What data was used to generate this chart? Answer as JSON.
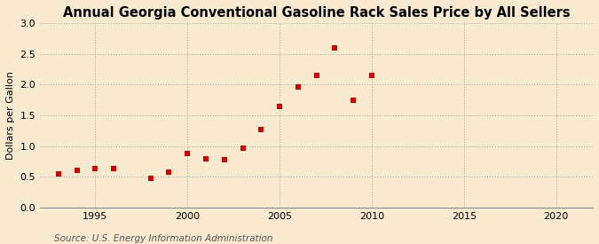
{
  "title": "Annual Georgia Conventional Gasoline Rack Sales Price by All Sellers",
  "ylabel": "Dollars per Gallon",
  "source": "Source: U.S. Energy Information Administration",
  "years": [
    1993,
    1994,
    1995,
    1996,
    1998,
    1999,
    2000,
    2001,
    2002,
    2003,
    2004,
    2005,
    2006,
    2007,
    2008,
    2009,
    2010
  ],
  "values": [
    0.55,
    0.6,
    0.63,
    0.63,
    0.48,
    0.58,
    0.88,
    0.79,
    0.78,
    0.96,
    1.27,
    1.65,
    1.96,
    2.15,
    2.6,
    1.75,
    2.15
  ],
  "marker_color": "#cc0000",
  "background_color": "#faebd0",
  "grid_color": "#b0b0b0",
  "xlim": [
    1992,
    2022
  ],
  "ylim": [
    0.0,
    3.0
  ],
  "xticks": [
    1995,
    2000,
    2005,
    2010,
    2015,
    2020
  ],
  "yticks": [
    0.0,
    0.5,
    1.0,
    1.5,
    2.0,
    2.5,
    3.0
  ],
  "title_fontsize": 10.5,
  "label_fontsize": 8,
  "tick_fontsize": 8,
  "source_fontsize": 7.5
}
